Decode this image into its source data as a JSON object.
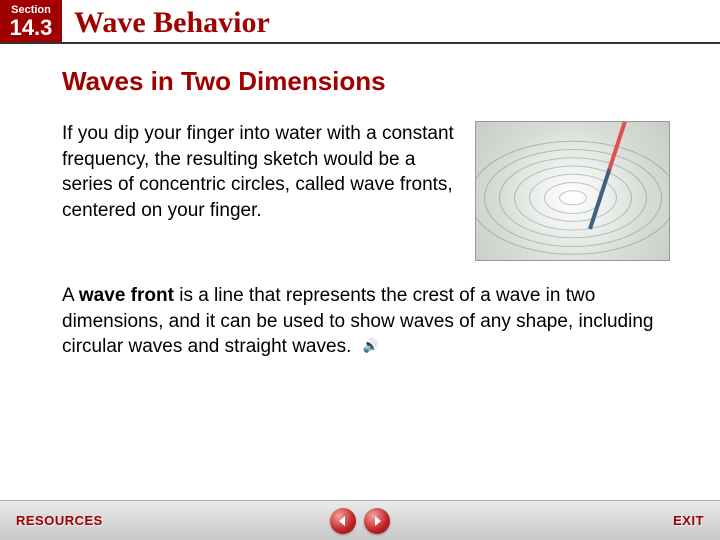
{
  "header": {
    "section_label": "Section",
    "section_number": "14.3",
    "chapter_title": "Wave Behavior"
  },
  "slide": {
    "title": "Waves in Two Dimensions",
    "para1": "If you dip your finger into water with a constant frequency, the resulting sketch would be a series of concentric circles, called wave fronts, centered on your finger.",
    "para2_pre": "A ",
    "para2_bold": "wave front",
    "para2_post": " is a line that represents the crest of a wave in two dimensions, and it can be used to show waves of any shape, including circular waves and straight waves."
  },
  "footer": {
    "resources": "RESOURCES",
    "exit": "EXIT"
  },
  "style": {
    "accent": "#a00000",
    "footer_gradient_top": "#eaeaea",
    "footer_gradient_bottom": "#c8c8c8"
  },
  "image": {
    "type": "photo-ripples",
    "ripple_count": 7,
    "ripple_base_radius": 14,
    "ripple_step": 15
  }
}
